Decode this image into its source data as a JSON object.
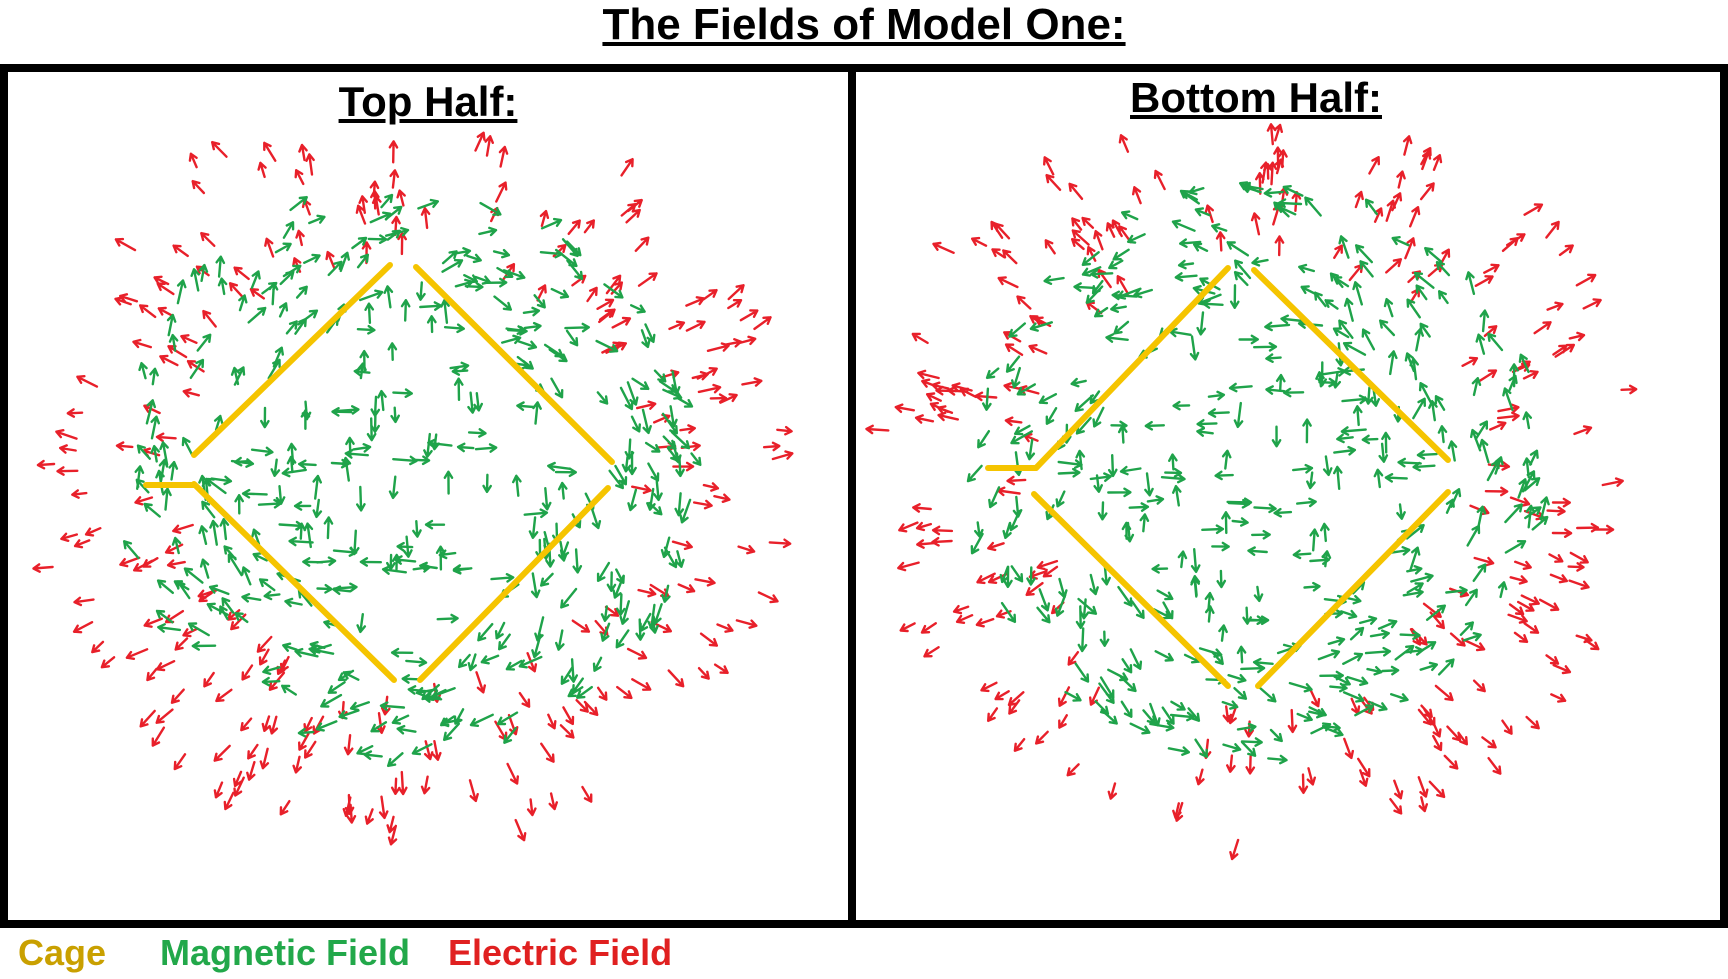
{
  "title": "The Fields of Model One:",
  "panels": {
    "top_half": {
      "title": "Top Half:"
    },
    "bottom_half": {
      "title": "Bottom Half:"
    }
  },
  "legend": {
    "cage": "Cage",
    "magnetic": "Magnetic Field",
    "electric": "Electric Field"
  },
  "colors": {
    "cage": "#f5c400",
    "magnetic": "#1fa34a",
    "electric": "#e8202a"
  }
}
